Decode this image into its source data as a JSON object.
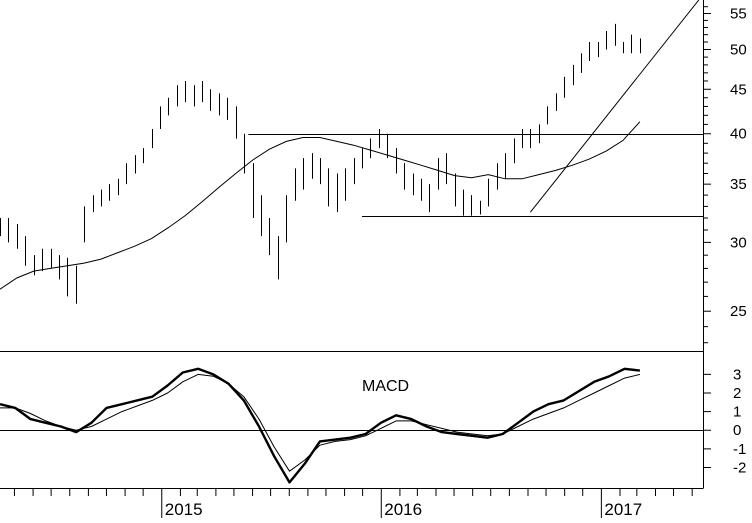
{
  "chart_data": [
    {
      "type": "ohlc",
      "scale": "log",
      "ylim": [
        22.5,
        57
      ],
      "x_range": [
        "2014-04-07",
        "2017-06-19"
      ],
      "y_ticks": [
        25,
        30,
        35,
        40,
        45,
        50,
        55
      ],
      "x_labels": [
        "2015",
        "2016",
        "2017"
      ],
      "grid": false,
      "series": [
        {
          "x": [
            "2014-04-07",
            "2014-04-21",
            "2014-05-05",
            "2014-05-19",
            "2014-06-02",
            "2014-06-16",
            "2014-06-30",
            "2014-07-14",
            "2014-07-28",
            "2014-08-11",
            "2014-08-25",
            "2014-09-08",
            "2014-09-22",
            "2014-10-06",
            "2014-10-20",
            "2014-11-03",
            "2014-11-17",
            "2014-12-01",
            "2014-12-15",
            "2014-12-29",
            "2015-01-12",
            "2015-01-26",
            "2015-02-09",
            "2015-02-23",
            "2015-03-09",
            "2015-03-23",
            "2015-04-06",
            "2015-04-20",
            "2015-05-04",
            "2015-05-18",
            "2015-06-01",
            "2015-06-15",
            "2015-06-29",
            "2015-07-13",
            "2015-07-27",
            "2015-08-10",
            "2015-08-24",
            "2015-09-07",
            "2015-09-21",
            "2015-10-05",
            "2015-10-19",
            "2015-11-02",
            "2015-11-16",
            "2015-11-30",
            "2015-12-14",
            "2015-12-28",
            "2016-01-11",
            "2016-01-25",
            "2016-02-08",
            "2016-02-22",
            "2016-03-07",
            "2016-03-21",
            "2016-04-04",
            "2016-04-18",
            "2016-05-02",
            "2016-05-16",
            "2016-05-30",
            "2016-06-13",
            "2016-06-27",
            "2016-07-11",
            "2016-07-25",
            "2016-08-08",
            "2016-08-22",
            "2016-09-05",
            "2016-09-19",
            "2016-10-03",
            "2016-10-17",
            "2016-10-31",
            "2016-11-14",
            "2016-11-28",
            "2016-12-12",
            "2016-12-26",
            "2017-01-09",
            "2017-01-23",
            "2017-02-06",
            "2017-02-20",
            "2017-03-06"
          ],
          "high": [
            32.0,
            32.0,
            31.5,
            30.5,
            29.0,
            29.5,
            29.5,
            29.0,
            28.8,
            28.2,
            33.0,
            34.0,
            34.5,
            35.0,
            35.5,
            37.0,
            37.8,
            38.5,
            40.5,
            43.0,
            44.0,
            45.5,
            46.0,
            45.5,
            46.0,
            45.0,
            44.5,
            44.0,
            43.0,
            40.0,
            37.0,
            34.0,
            32.0,
            30.5,
            34.0,
            36.5,
            37.5,
            38.0,
            37.5,
            36.5,
            36.0,
            36.5,
            37.5,
            38.5,
            39.5,
            40.5,
            40.0,
            38.5,
            37.0,
            36.0,
            35.5,
            35.0,
            37.5,
            38.0,
            36.0,
            34.5,
            34.0,
            33.5,
            35.5,
            37.0,
            38.0,
            39.5,
            40.5,
            40.5,
            41.0,
            43.0,
            44.5,
            46.5,
            48.0,
            49.5,
            51.0,
            51.0,
            52.5,
            53.5,
            51.0,
            52.0,
            51.5
          ],
          "low": [
            30.5,
            30.0,
            29.5,
            28.2,
            27.5,
            27.8,
            28.0,
            27.2,
            26.0,
            25.5,
            30.0,
            32.5,
            33.0,
            33.5,
            34.0,
            35.0,
            36.0,
            37.0,
            38.5,
            40.5,
            42.0,
            43.0,
            43.5,
            43.0,
            43.5,
            42.5,
            42.0,
            41.5,
            39.5,
            36.0,
            32.0,
            30.5,
            29.0,
            27.2,
            30.0,
            33.5,
            34.5,
            35.5,
            35.0,
            33.0,
            32.5,
            33.5,
            35.0,
            36.5,
            37.5,
            38.5,
            37.5,
            36.0,
            34.5,
            34.0,
            33.5,
            32.5,
            34.5,
            35.0,
            33.0,
            32.2,
            32.2,
            32.3,
            33.0,
            34.5,
            35.5,
            37.0,
            38.5,
            38.5,
            39.0,
            41.0,
            42.5,
            44.0,
            45.5,
            47.0,
            48.5,
            49.0,
            50.0,
            50.5,
            49.5,
            49.5,
            49.5
          ]
        }
      ],
      "moving_average": [
        26.5,
        27.3,
        27.8,
        28.0,
        28.2,
        28.4,
        28.7,
        29.2,
        29.7,
        30.3,
        31.2,
        32.2,
        33.4,
        34.7,
        36.0,
        37.3,
        38.4,
        39.2,
        39.6,
        39.6,
        39.2,
        38.8,
        38.3,
        37.8,
        37.3,
        36.8,
        36.3,
        35.8,
        35.6,
        35.9,
        35.5,
        35.5,
        35.9,
        36.3,
        36.8,
        37.4,
        38.2,
        39.3,
        41.3
      ],
      "support_resistance": [
        40,
        32.2
      ],
      "trendline": {
        "from": [
          "2016-09-05",
          32.5
        ],
        "to": [
          "2017-06-12",
          57
        ]
      }
    },
    {
      "type": "line",
      "title": "MACD",
      "ylim": [
        -3.1,
        4.2
      ],
      "y_ticks": [
        -2,
        -1,
        0,
        1,
        2,
        3
      ],
      "zero_line": true,
      "series": [
        {
          "values": [
            1.4,
            1.2,
            0.6,
            0.4,
            0.2,
            -0.1,
            0.4,
            1.2,
            1.4,
            1.6,
            1.8,
            2.4,
            3.1,
            3.3,
            3.0,
            2.5,
            1.6,
            0.2,
            -1.4,
            -2.8,
            -1.8,
            -0.6,
            -0.5,
            -0.4,
            -0.2,
            0.4,
            0.8,
            0.6,
            0.2,
            -0.1,
            -0.2,
            -0.3,
            -0.4,
            -0.2,
            0.4,
            1.0,
            1.4,
            1.6,
            2.1,
            2.6,
            2.9,
            3.3,
            3.2
          ],
          "bold": true
        },
        {
          "values": [
            1.2,
            1.2,
            0.9,
            0.5,
            0.2,
            0.0,
            0.2,
            0.6,
            1.0,
            1.3,
            1.6,
            2.0,
            2.6,
            3.0,
            2.9,
            2.5,
            1.8,
            0.6,
            -0.9,
            -2.2,
            -1.6,
            -0.8,
            -0.6,
            -0.5,
            -0.3,
            0.1,
            0.5,
            0.5,
            0.3,
            0.1,
            -0.1,
            -0.2,
            -0.3,
            -0.2,
            0.2,
            0.6,
            0.9,
            1.2,
            1.6,
            2.0,
            2.4,
            2.8,
            3.0
          ],
          "bold": false
        }
      ]
    }
  ],
  "labels": {
    "macd_title": "MACD"
  }
}
